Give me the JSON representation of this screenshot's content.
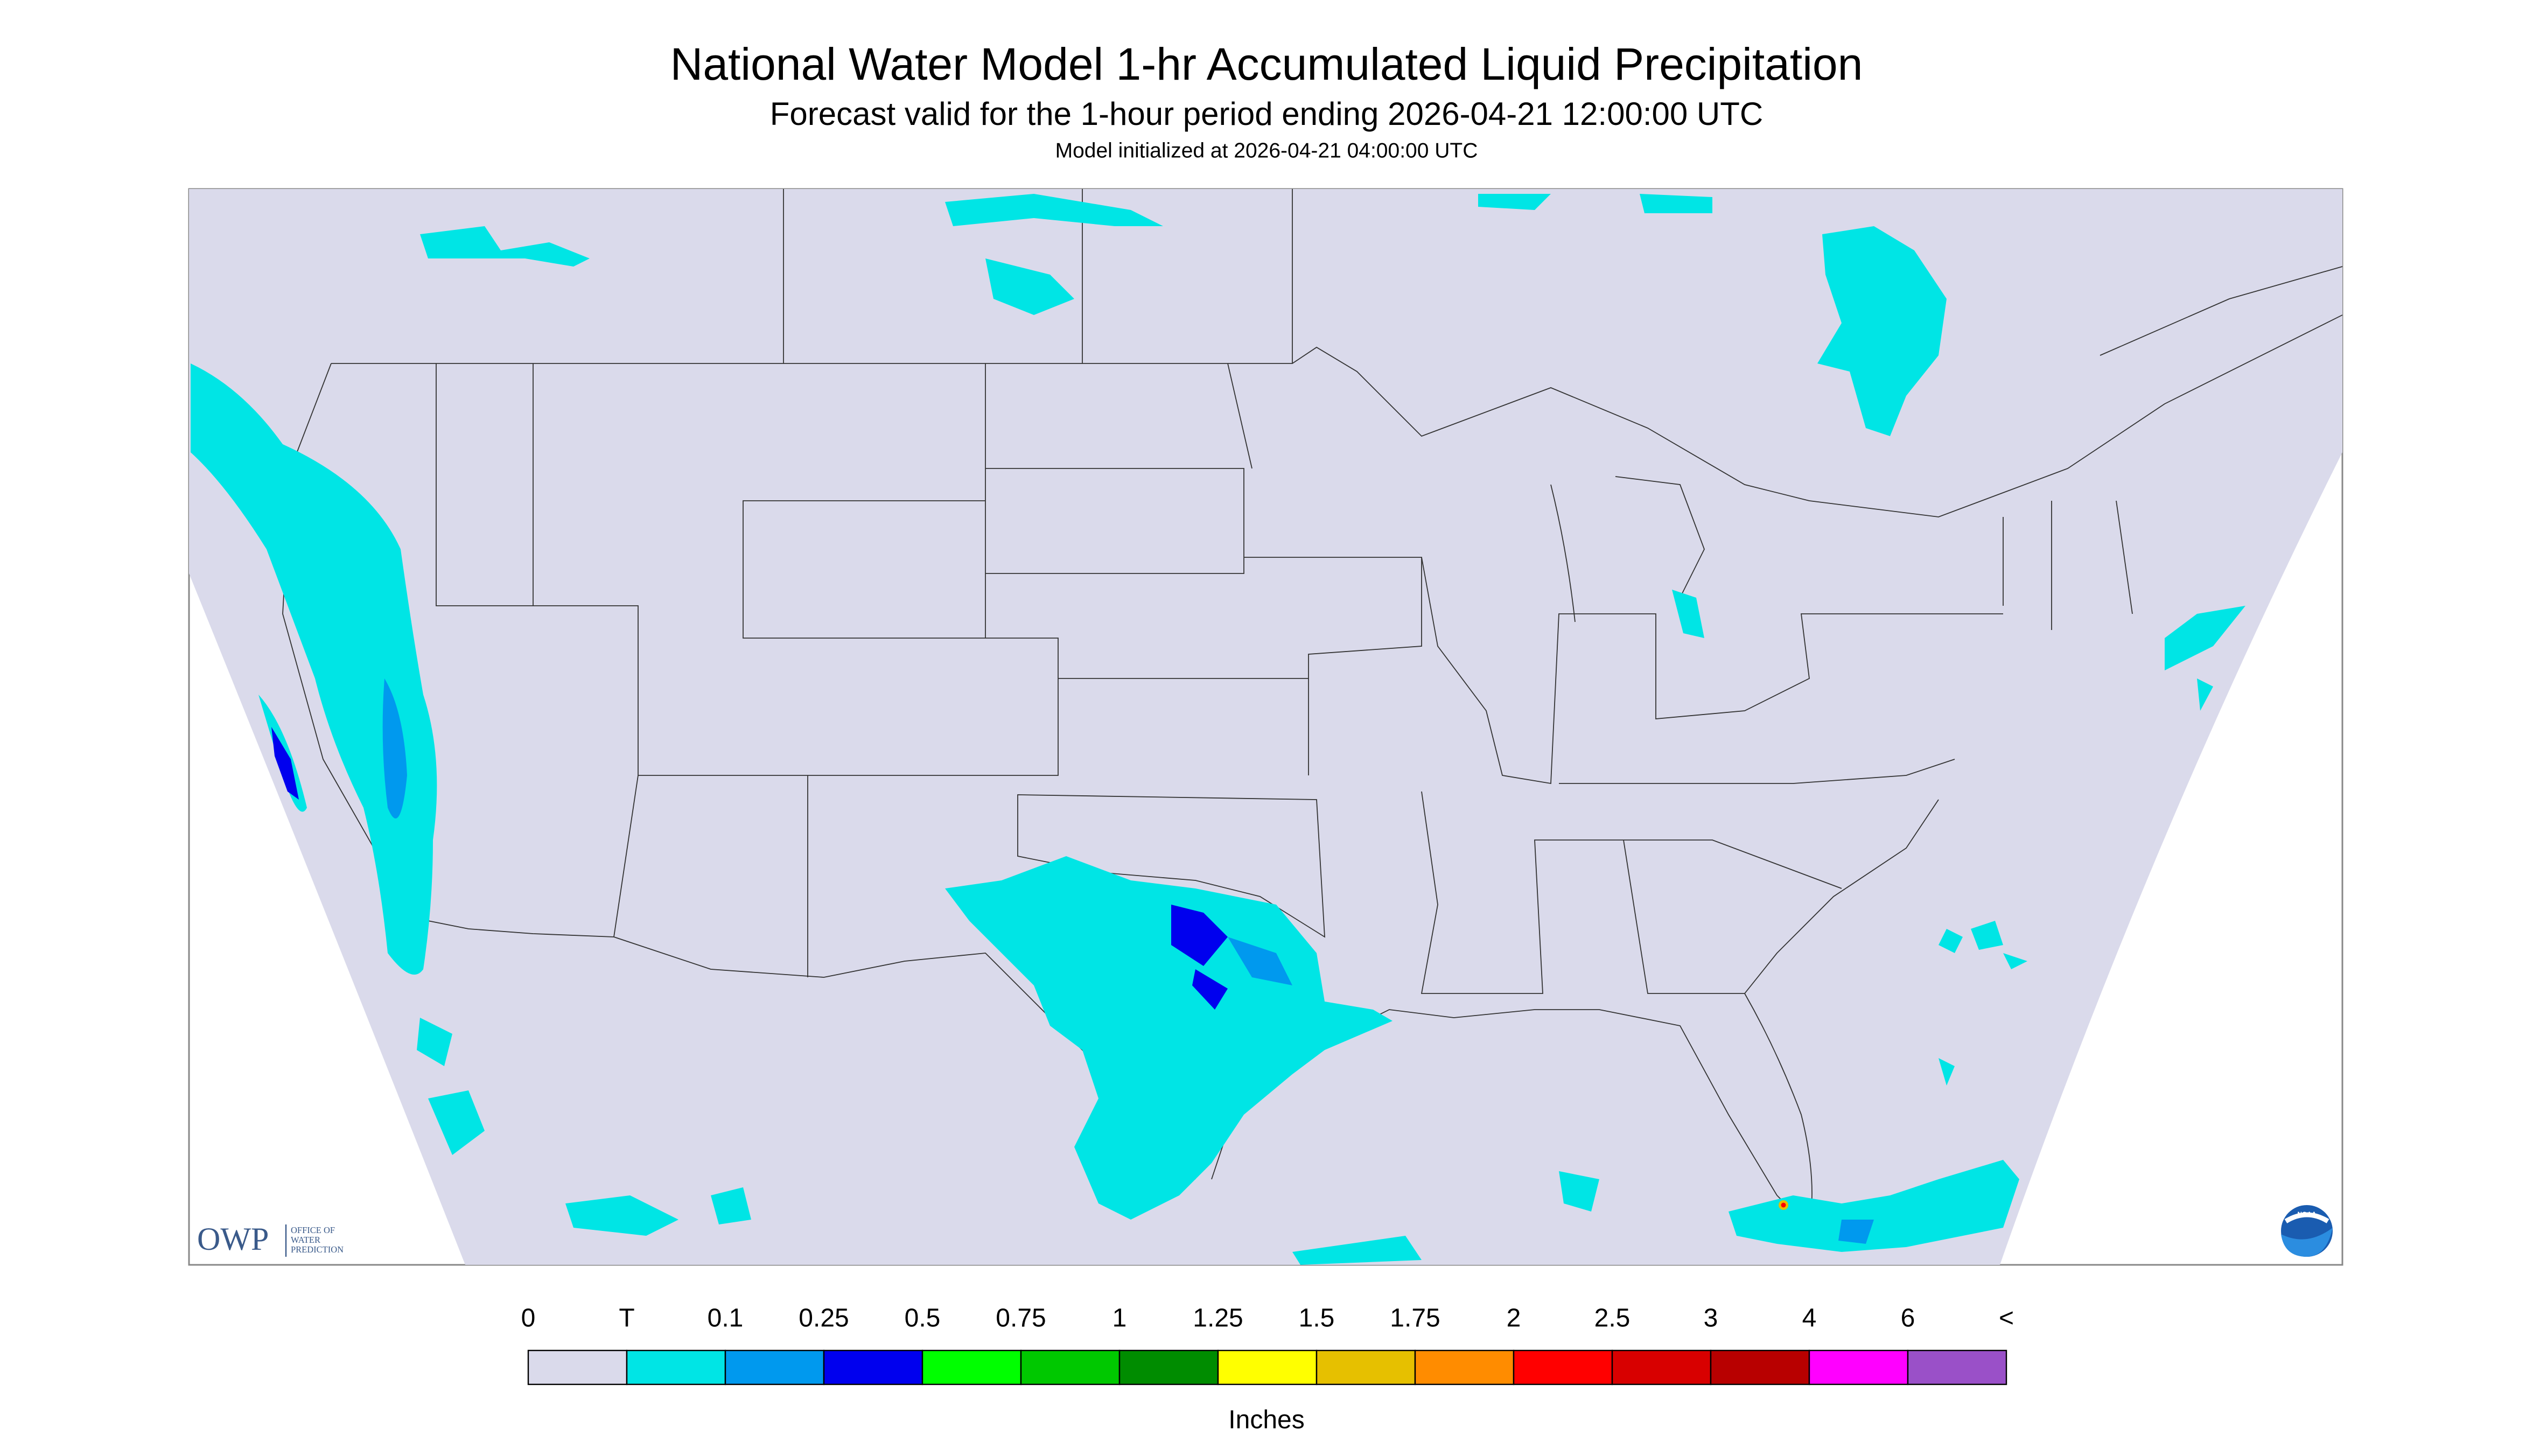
{
  "header": {
    "title": "National Water Model 1-hr Accumulated Liquid Precipitation",
    "subtitle": "Forecast valid for the 1-hour period ending 2026-04-21 12:00:00 UTC",
    "initialized": "Model initialized at 2026-04-21 04:00:00 UTC"
  },
  "legend": {
    "labels": [
      "0",
      "T",
      "0.1",
      "0.25",
      "0.5",
      "0.75",
      "1",
      "1.25",
      "1.5",
      "1.75",
      "2",
      "2.5",
      "3",
      "4",
      "6",
      "<"
    ],
    "colors": [
      "#dadaeb",
      "#00e5e5",
      "#0099ee",
      "#0000ee",
      "#00ff00",
      "#00c800",
      "#008c00",
      "#ffff00",
      "#e6c000",
      "#ff8c00",
      "#ff0000",
      "#d80000",
      "#b80000",
      "#ff00ff",
      "#9a50c8"
    ],
    "unit": "Inches"
  },
  "logos": {
    "owp": "OWP",
    "owp_text": [
      "OFFICE OF",
      "WATER",
      "PREDICTION"
    ],
    "noaa": "NOAA"
  }
}
